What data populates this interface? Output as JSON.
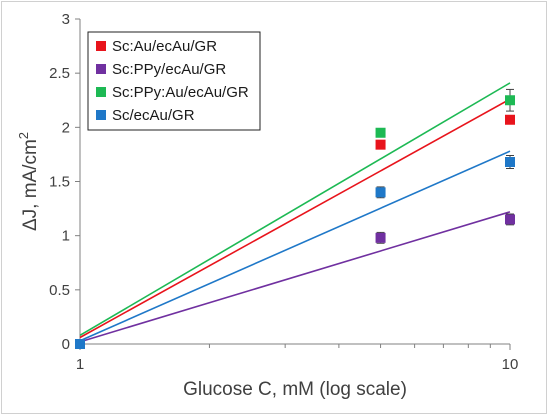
{
  "chart_data": {
    "type": "scatter",
    "xlabel": "Glucose C, mM (log scale)",
    "ylabel": "ΔJ, mA/cm",
    "ylabel_sup": "2",
    "xscale": "log",
    "xlim": [
      1,
      10
    ],
    "ylim": [
      0,
      3
    ],
    "xticks": [
      1,
      10
    ],
    "xtick_labels": [
      "1",
      "10"
    ],
    "yticks": [
      0,
      0.5,
      1,
      1.5,
      2,
      2.5,
      3
    ],
    "ytick_labels": [
      "0",
      "0.5",
      "1",
      "1.5",
      "2",
      "2.5",
      "3"
    ],
    "grid": false,
    "legend_position": "top-left",
    "series": [
      {
        "name": "Sc:Au/ecAu/GR",
        "color": "#e8141c",
        "x": [
          1,
          5,
          10
        ],
        "y": [
          0,
          1.84,
          2.07
        ],
        "fit": [
          [
            1,
            0.06
          ],
          [
            10,
            2.26
          ]
        ]
      },
      {
        "name": "Sc:PPy/ecAu/GR",
        "color": "#7030a0",
        "x": [
          1,
          5,
          10
        ],
        "y": [
          0,
          0.98,
          1.15
        ],
        "err": [
          0,
          0.05,
          0.05
        ],
        "fit": [
          [
            1,
            0.02
          ],
          [
            10,
            1.22
          ]
        ]
      },
      {
        "name": "Sc:PPy:Au/ecAu/GR",
        "color": "#1db954",
        "x": [
          1,
          5,
          10
        ],
        "y": [
          0,
          1.95,
          2.25
        ],
        "err": [
          0,
          0.0,
          0.1
        ],
        "fit": [
          [
            1,
            0.08
          ],
          [
            10,
            2.41
          ]
        ]
      },
      {
        "name": "Sc/ecAu/GR",
        "color": "#1f78c8",
        "x": [
          1,
          5,
          10
        ],
        "y": [
          0,
          1.4,
          1.68
        ],
        "err": [
          0,
          0.05,
          0.06
        ],
        "fit": [
          [
            1,
            0.03
          ],
          [
            10,
            1.78
          ]
        ]
      }
    ]
  }
}
